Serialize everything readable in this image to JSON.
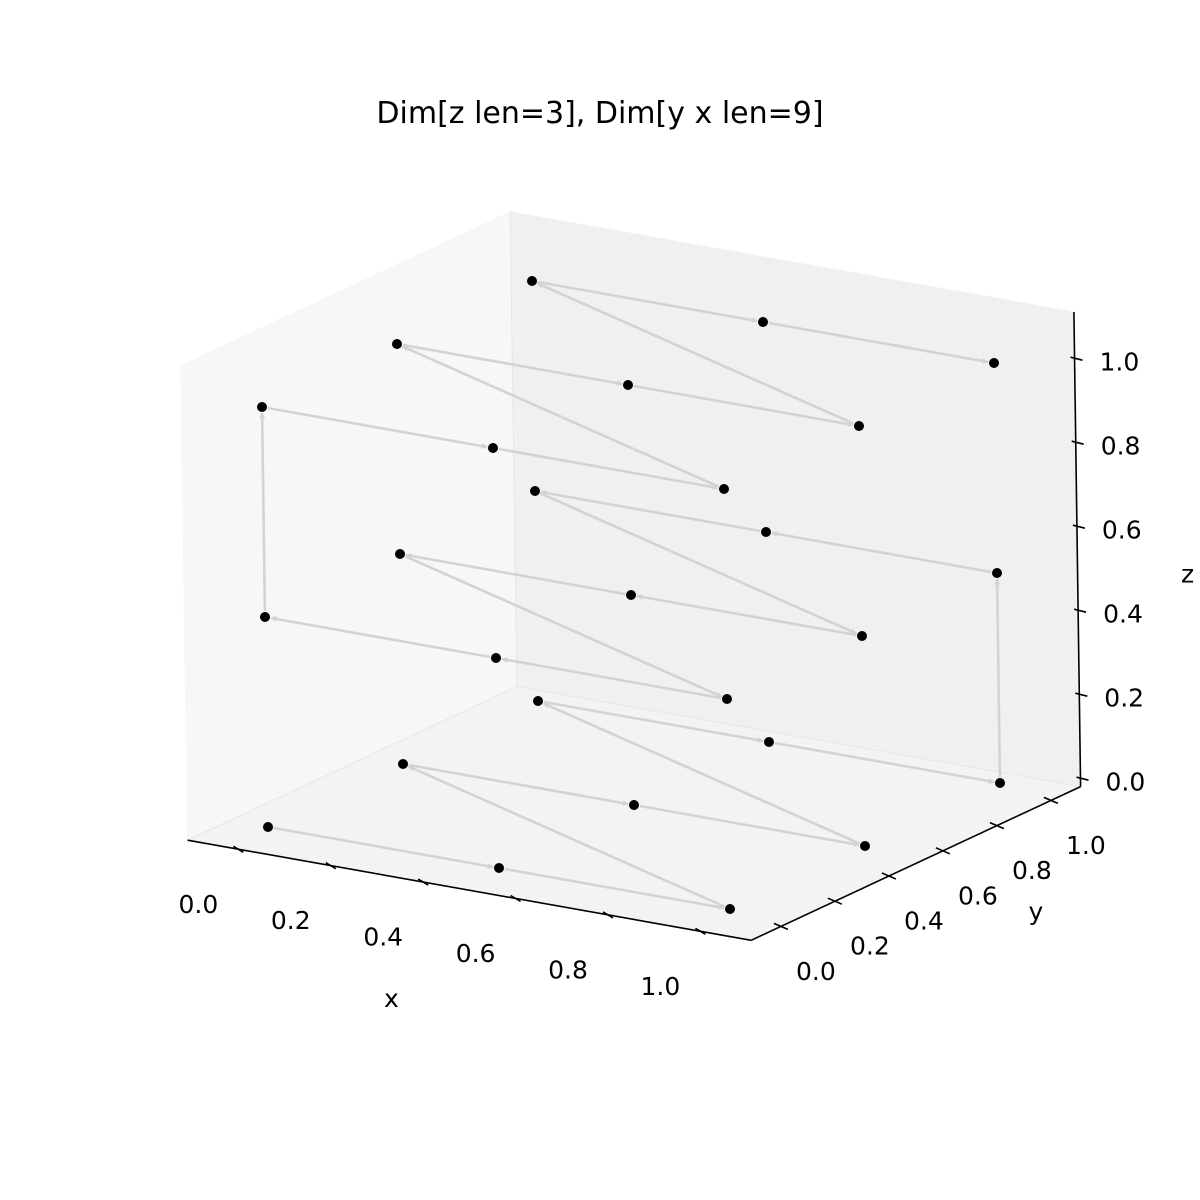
{
  "chart_data": {
    "type": "scatter",
    "title": "Dim[z len=3], Dim[y x len=9]",
    "xlabel": "x",
    "ylabel": "y",
    "zlabel": "z",
    "xlim": [
      0,
      1
    ],
    "ylim": [
      0,
      1
    ],
    "zlim": [
      0,
      1
    ],
    "x_ticks": [
      "0.0",
      "0.2",
      "0.4",
      "0.6",
      "0.8",
      "1.0"
    ],
    "y_ticks": [
      "0.0",
      "0.2",
      "0.4",
      "0.6",
      "0.8",
      "1.0"
    ],
    "z_ticks": [
      "0.0",
      "0.2",
      "0.4",
      "0.6",
      "0.8",
      "1.0"
    ],
    "grid": false,
    "point_color": "#000000",
    "arrow_color": "#d3d3d3",
    "pane_colors": {
      "left": "#f7f7f7",
      "back": "#f0f0f0",
      "floor": "#f3f3f3"
    },
    "points": [
      {
        "x": 0.0,
        "y": 0.0,
        "z": 0.0
      },
      {
        "x": 0.5,
        "y": 0.0,
        "z": 0.0
      },
      {
        "x": 1.0,
        "y": 0.0,
        "z": 0.0
      },
      {
        "x": 0.0,
        "y": 0.5,
        "z": 0.0
      },
      {
        "x": 0.5,
        "y": 0.5,
        "z": 0.0
      },
      {
        "x": 1.0,
        "y": 0.5,
        "z": 0.0
      },
      {
        "x": 0.0,
        "y": 1.0,
        "z": 0.0
      },
      {
        "x": 0.5,
        "y": 1.0,
        "z": 0.0
      },
      {
        "x": 1.0,
        "y": 1.0,
        "z": 0.0
      },
      {
        "x": 1.0,
        "y": 1.0,
        "z": 0.5
      },
      {
        "x": 0.5,
        "y": 1.0,
        "z": 0.5
      },
      {
        "x": 0.0,
        "y": 1.0,
        "z": 0.5
      },
      {
        "x": 1.0,
        "y": 0.5,
        "z": 0.5
      },
      {
        "x": 0.5,
        "y": 0.5,
        "z": 0.5
      },
      {
        "x": 0.0,
        "y": 0.5,
        "z": 0.5
      },
      {
        "x": 1.0,
        "y": 0.0,
        "z": 0.5
      },
      {
        "x": 0.5,
        "y": 0.0,
        "z": 0.5
      },
      {
        "x": 0.0,
        "y": 0.0,
        "z": 0.5
      },
      {
        "x": 0.0,
        "y": 0.0,
        "z": 1.0
      },
      {
        "x": 0.5,
        "y": 0.0,
        "z": 1.0
      },
      {
        "x": 1.0,
        "y": 0.0,
        "z": 1.0
      },
      {
        "x": 0.0,
        "y": 0.5,
        "z": 1.0
      },
      {
        "x": 0.5,
        "y": 0.5,
        "z": 1.0
      },
      {
        "x": 1.0,
        "y": 0.5,
        "z": 1.0
      },
      {
        "x": 0.0,
        "y": 1.0,
        "z": 1.0
      },
      {
        "x": 0.5,
        "y": 1.0,
        "z": 1.0
      },
      {
        "x": 1.0,
        "y": 1.0,
        "z": 1.0
      }
    ]
  }
}
